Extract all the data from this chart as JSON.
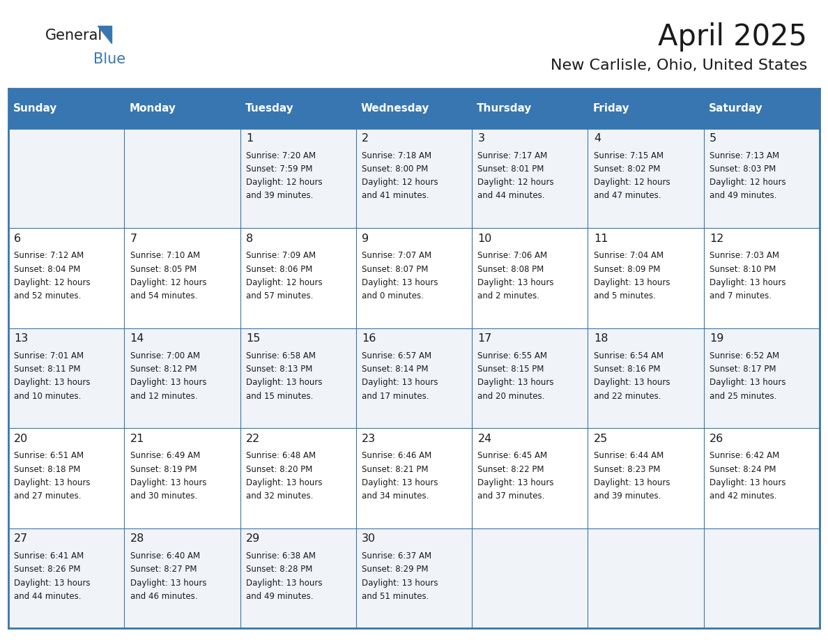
{
  "title": "April 2025",
  "subtitle": "New Carlisle, Ohio, United States",
  "header_bg": "#3776b0",
  "header_text_color": "#ffffff",
  "row_bg_odd": "#f0f4f8",
  "row_bg_even": "#ffffff",
  "border_color": "#3776b0",
  "text_color": "#1a1a1a",
  "day_names": [
    "Sunday",
    "Monday",
    "Tuesday",
    "Wednesday",
    "Thursday",
    "Friday",
    "Saturday"
  ],
  "days": [
    {
      "day": 1,
      "col": 2,
      "row": 0,
      "sunrise": "7:20 AM",
      "sunset": "7:59 PM",
      "daylight_h": "12 hours",
      "daylight_m": "39 minutes."
    },
    {
      "day": 2,
      "col": 3,
      "row": 0,
      "sunrise": "7:18 AM",
      "sunset": "8:00 PM",
      "daylight_h": "12 hours",
      "daylight_m": "41 minutes."
    },
    {
      "day": 3,
      "col": 4,
      "row": 0,
      "sunrise": "7:17 AM",
      "sunset": "8:01 PM",
      "daylight_h": "12 hours",
      "daylight_m": "44 minutes."
    },
    {
      "day": 4,
      "col": 5,
      "row": 0,
      "sunrise": "7:15 AM",
      "sunset": "8:02 PM",
      "daylight_h": "12 hours",
      "daylight_m": "47 minutes."
    },
    {
      "day": 5,
      "col": 6,
      "row": 0,
      "sunrise": "7:13 AM",
      "sunset": "8:03 PM",
      "daylight_h": "12 hours",
      "daylight_m": "49 minutes."
    },
    {
      "day": 6,
      "col": 0,
      "row": 1,
      "sunrise": "7:12 AM",
      "sunset": "8:04 PM",
      "daylight_h": "12 hours",
      "daylight_m": "52 minutes."
    },
    {
      "day": 7,
      "col": 1,
      "row": 1,
      "sunrise": "7:10 AM",
      "sunset": "8:05 PM",
      "daylight_h": "12 hours",
      "daylight_m": "54 minutes."
    },
    {
      "day": 8,
      "col": 2,
      "row": 1,
      "sunrise": "7:09 AM",
      "sunset": "8:06 PM",
      "daylight_h": "12 hours",
      "daylight_m": "57 minutes."
    },
    {
      "day": 9,
      "col": 3,
      "row": 1,
      "sunrise": "7:07 AM",
      "sunset": "8:07 PM",
      "daylight_h": "13 hours",
      "daylight_m": "0 minutes."
    },
    {
      "day": 10,
      "col": 4,
      "row": 1,
      "sunrise": "7:06 AM",
      "sunset": "8:08 PM",
      "daylight_h": "13 hours",
      "daylight_m": "2 minutes."
    },
    {
      "day": 11,
      "col": 5,
      "row": 1,
      "sunrise": "7:04 AM",
      "sunset": "8:09 PM",
      "daylight_h": "13 hours",
      "daylight_m": "5 minutes."
    },
    {
      "day": 12,
      "col": 6,
      "row": 1,
      "sunrise": "7:03 AM",
      "sunset": "8:10 PM",
      "daylight_h": "13 hours",
      "daylight_m": "7 minutes."
    },
    {
      "day": 13,
      "col": 0,
      "row": 2,
      "sunrise": "7:01 AM",
      "sunset": "8:11 PM",
      "daylight_h": "13 hours",
      "daylight_m": "10 minutes."
    },
    {
      "day": 14,
      "col": 1,
      "row": 2,
      "sunrise": "7:00 AM",
      "sunset": "8:12 PM",
      "daylight_h": "13 hours",
      "daylight_m": "12 minutes."
    },
    {
      "day": 15,
      "col": 2,
      "row": 2,
      "sunrise": "6:58 AM",
      "sunset": "8:13 PM",
      "daylight_h": "13 hours",
      "daylight_m": "15 minutes."
    },
    {
      "day": 16,
      "col": 3,
      "row": 2,
      "sunrise": "6:57 AM",
      "sunset": "8:14 PM",
      "daylight_h": "13 hours",
      "daylight_m": "17 minutes."
    },
    {
      "day": 17,
      "col": 4,
      "row": 2,
      "sunrise": "6:55 AM",
      "sunset": "8:15 PM",
      "daylight_h": "13 hours",
      "daylight_m": "20 minutes."
    },
    {
      "day": 18,
      "col": 5,
      "row": 2,
      "sunrise": "6:54 AM",
      "sunset": "8:16 PM",
      "daylight_h": "13 hours",
      "daylight_m": "22 minutes."
    },
    {
      "day": 19,
      "col": 6,
      "row": 2,
      "sunrise": "6:52 AM",
      "sunset": "8:17 PM",
      "daylight_h": "13 hours",
      "daylight_m": "25 minutes."
    },
    {
      "day": 20,
      "col": 0,
      "row": 3,
      "sunrise": "6:51 AM",
      "sunset": "8:18 PM",
      "daylight_h": "13 hours",
      "daylight_m": "27 minutes."
    },
    {
      "day": 21,
      "col": 1,
      "row": 3,
      "sunrise": "6:49 AM",
      "sunset": "8:19 PM",
      "daylight_h": "13 hours",
      "daylight_m": "30 minutes."
    },
    {
      "day": 22,
      "col": 2,
      "row": 3,
      "sunrise": "6:48 AM",
      "sunset": "8:20 PM",
      "daylight_h": "13 hours",
      "daylight_m": "32 minutes."
    },
    {
      "day": 23,
      "col": 3,
      "row": 3,
      "sunrise": "6:46 AM",
      "sunset": "8:21 PM",
      "daylight_h": "13 hours",
      "daylight_m": "34 minutes."
    },
    {
      "day": 24,
      "col": 4,
      "row": 3,
      "sunrise": "6:45 AM",
      "sunset": "8:22 PM",
      "daylight_h": "13 hours",
      "daylight_m": "37 minutes."
    },
    {
      "day": 25,
      "col": 5,
      "row": 3,
      "sunrise": "6:44 AM",
      "sunset": "8:23 PM",
      "daylight_h": "13 hours",
      "daylight_m": "39 minutes."
    },
    {
      "day": 26,
      "col": 6,
      "row": 3,
      "sunrise": "6:42 AM",
      "sunset": "8:24 PM",
      "daylight_h": "13 hours",
      "daylight_m": "42 minutes."
    },
    {
      "day": 27,
      "col": 0,
      "row": 4,
      "sunrise": "6:41 AM",
      "sunset": "8:26 PM",
      "daylight_h": "13 hours",
      "daylight_m": "44 minutes."
    },
    {
      "day": 28,
      "col": 1,
      "row": 4,
      "sunrise": "6:40 AM",
      "sunset": "8:27 PM",
      "daylight_h": "13 hours",
      "daylight_m": "46 minutes."
    },
    {
      "day": 29,
      "col": 2,
      "row": 4,
      "sunrise": "6:38 AM",
      "sunset": "8:28 PM",
      "daylight_h": "13 hours",
      "daylight_m": "49 minutes."
    },
    {
      "day": 30,
      "col": 3,
      "row": 4,
      "sunrise": "6:37 AM",
      "sunset": "8:29 PM",
      "daylight_h": "13 hours",
      "daylight_m": "51 minutes."
    }
  ]
}
